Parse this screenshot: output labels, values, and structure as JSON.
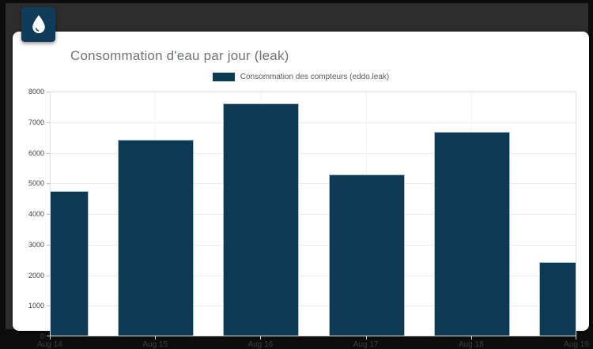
{
  "window": {
    "background_outer": "#0d0d0d",
    "background_inner": "#2d2d2d"
  },
  "header": {
    "title": "Consommation d'eau par jour (leak)",
    "icon": "water-drop-icon",
    "icon_color": "#0f3d59"
  },
  "legend": {
    "label": "Consommation des compteurs (eddo.leak)",
    "swatch_color": "#0d3a53",
    "position": "top-center"
  },
  "chart_data": {
    "type": "bar",
    "title": "Consommation d'eau par jour (leak)",
    "categories": [
      "Aug 14",
      "Aug 15",
      "Aug 16",
      "Aug 17",
      "Aug 18",
      "Aug 19"
    ],
    "series": [
      {
        "name": "Consommation des compteurs (eddo.leak)",
        "values": [
          4730,
          6410,
          7600,
          5270,
          6660,
          2390
        ],
        "color": "#0d3a53"
      }
    ],
    "xlabel": "",
    "ylabel": "",
    "ylim": [
      0,
      8000
    ],
    "yticks": [
      0,
      1000,
      2000,
      3000,
      4000,
      5000,
      6000,
      7000,
      8000
    ],
    "grid": true,
    "legend_position": "top-center",
    "note_first_last_bars_clipped_at_plot_edges": true
  }
}
